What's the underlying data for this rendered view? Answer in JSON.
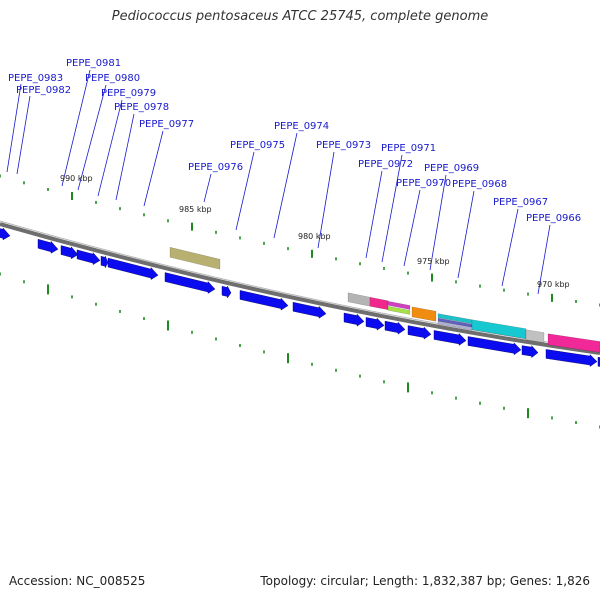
{
  "title": "Pediococcus pentosaceus ATCC 25745, complete genome",
  "footer": {
    "accession": "Accession: NC_008525",
    "summary": "Topology: circular; Length: 1,832,387 bp; Genes: 1,826"
  },
  "colors": {
    "forward_gene": "#0b0bf0",
    "label": "#1a1acc",
    "backbone": "#8a8a8a",
    "tick": "#1e8a1e"
  },
  "kbp_labels": [
    "990 kbp",
    "985 kbp",
    "980 kbp",
    "975 kbp",
    "970 kbp"
  ],
  "gene_labels": [
    "PEPE_0983",
    "PEPE_0982",
    "PEPE_0981",
    "PEPE_0980",
    "PEPE_0979",
    "PEPE_0978",
    "PEPE_0977",
    "PEPE_0976",
    "PEPE_0975",
    "PEPE_0974",
    "PEPE_0973",
    "PEPE_0972",
    "PEPE_0971",
    "PEPE_0970",
    "PEPE_0969",
    "PEPE_0968",
    "PEPE_0967",
    "PEPE_0966"
  ]
}
